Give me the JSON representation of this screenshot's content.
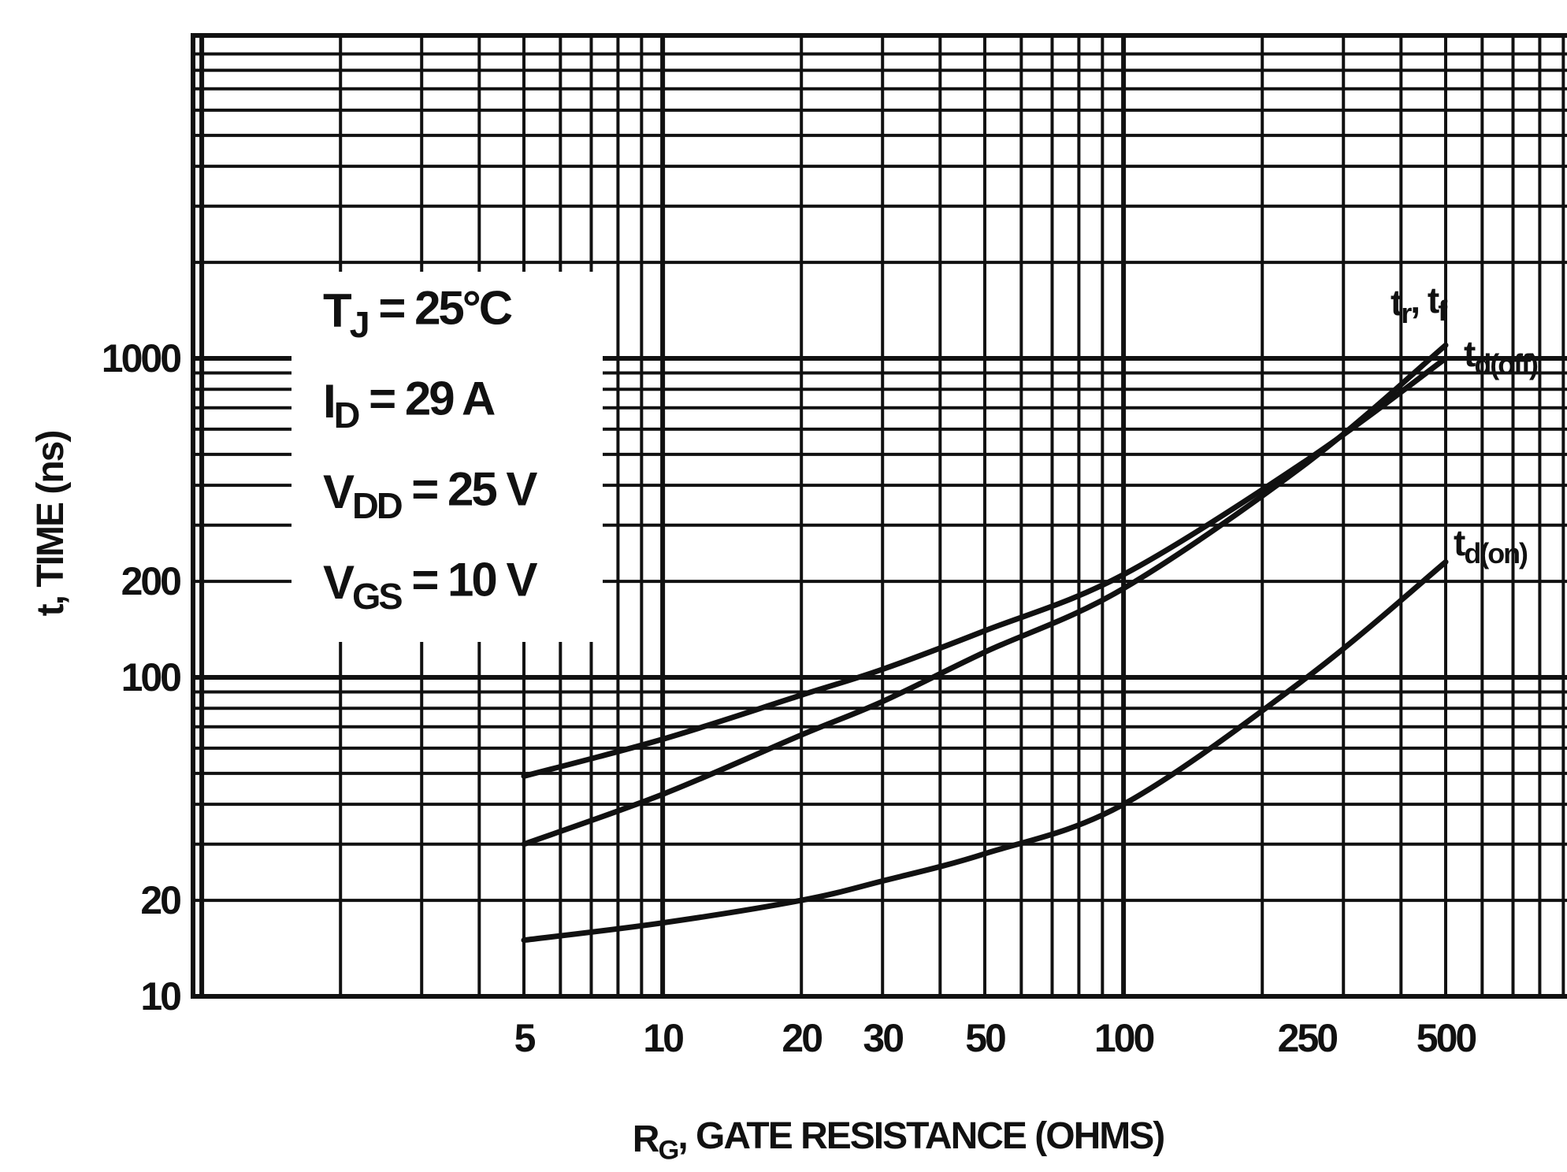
{
  "chart_data": {
    "type": "line",
    "xlabel": {
      "main": "R",
      "sub": "G",
      "rest": ", GATE RESISTANCE (OHMS)"
    },
    "ylabel": "t, TIME (ns)",
    "x_scale": "log",
    "y_scale": "log",
    "xlim": [
      1,
      1000
    ],
    "ylim": [
      10,
      10000
    ],
    "x_ticks": [
      {
        "value": 5,
        "label": "5"
      },
      {
        "value": 10,
        "label": "10"
      },
      {
        "value": 20,
        "label": "20"
      },
      {
        "value": 30,
        "label": "30"
      },
      {
        "value": 50,
        "label": "50"
      },
      {
        "value": 100,
        "label": "100"
      },
      {
        "value": 250,
        "label": "250"
      },
      {
        "value": 500,
        "label": "500"
      }
    ],
    "y_ticks": [
      {
        "value": 10,
        "label": "10"
      },
      {
        "value": 20,
        "label": "20"
      },
      {
        "value": 100,
        "label": "100"
      },
      {
        "value": 200,
        "label": "200"
      },
      {
        "value": 1000,
        "label": "1000"
      }
    ],
    "grid": true,
    "conditions": [
      {
        "main": "T",
        "sub": "J",
        "rest": " = 25°C"
      },
      {
        "main": "I",
        "sub": "D",
        "rest": " = 29 A"
      },
      {
        "main": "V",
        "sub": "DD",
        "rest": " = 25 V"
      },
      {
        "main": "V",
        "sub": "GS",
        "rest": " = 10 V"
      }
    ],
    "series": [
      {
        "label": {
          "main": "t",
          "sub": "d(off)",
          "rest": ""
        },
        "x": [
          5,
          10,
          20,
          30,
          50,
          100,
          250,
          500
        ],
        "y": [
          49,
          64,
          88,
          106,
          140,
          210,
          480,
          1000
        ]
      },
      {
        "label": {
          "main": "t",
          "sub": "r",
          "rest": ", t",
          "main2": "",
          "sub2": "f"
        },
        "x": [
          5,
          10,
          20,
          30,
          50,
          100,
          250,
          500
        ],
        "y": [
          30,
          43,
          66,
          84,
          120,
          190,
          470,
          1100
        ]
      },
      {
        "label": {
          "main": "t",
          "sub": "d(on)",
          "rest": ""
        },
        "x": [
          5,
          10,
          20,
          30,
          50,
          100,
          250,
          500
        ],
        "y": [
          15,
          17,
          20,
          23,
          28,
          40,
          100,
          230
        ]
      }
    ]
  }
}
